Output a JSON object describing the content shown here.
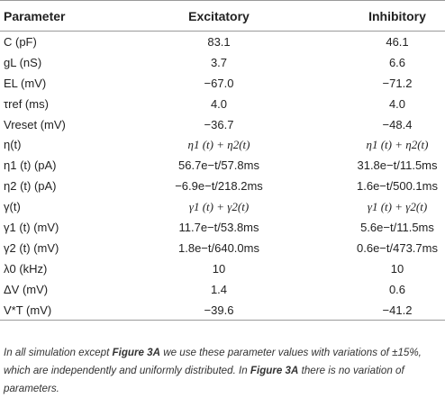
{
  "table": {
    "headers": {
      "parameter": "Parameter",
      "excitatory": "Excitatory",
      "inhibitory": "Inhibitory"
    },
    "rows": [
      {
        "parameter": "C (pF)",
        "excitatory": "83.1",
        "inhibitory": "46.1"
      },
      {
        "parameter": "gL (nS)",
        "excitatory": "3.7",
        "inhibitory": "6.6"
      },
      {
        "parameter": "EL (mV)",
        "excitatory": "−67.0",
        "inhibitory": "−71.2"
      },
      {
        "parameter": "τref (ms)",
        "excitatory": "4.0",
        "inhibitory": "4.0"
      },
      {
        "parameter": "Vreset (mV)",
        "excitatory": "−36.7",
        "inhibitory": "−48.4"
      },
      {
        "parameter": "η(t)",
        "excitatory": "η1 (t) + η2(t)",
        "inhibitory": "η1 (t) + η2(t)"
      },
      {
        "parameter": "η1 (t) (pA)",
        "excitatory": "56.7e−t/57.8ms",
        "inhibitory": "31.8e−t/11.5ms"
      },
      {
        "parameter": "η2 (t) (pA)",
        "excitatory": "−6.9e−t/218.2ms",
        "inhibitory": "1.6e−t/500.1ms"
      },
      {
        "parameter": "γ(t)",
        "excitatory": "γ1 (t) + γ2(t)",
        "inhibitory": "γ1 (t) + γ2(t)"
      },
      {
        "parameter": "γ1 (t) (mV)",
        "excitatory": "11.7e−t/53.8ms",
        "inhibitory": "5.6e−t/11.5ms"
      },
      {
        "parameter": "γ2 (t) (mV)",
        "excitatory": "1.8e−t/640.0ms",
        "inhibitory": "0.6e−t/473.7ms"
      },
      {
        "parameter": "λ0 (kHz)",
        "excitatory": "10",
        "inhibitory": "10"
      },
      {
        "parameter": "ΔV (mV)",
        "excitatory": "1.4",
        "inhibitory": "0.6"
      },
      {
        "parameter": "V*T (mV)",
        "excitatory": "−39.6",
        "inhibitory": "−41.2"
      }
    ]
  },
  "footnote": {
    "part1": "In all simulation except ",
    "ref1": "Figure 3A",
    "part2": " we use these parameter values with variations of ±15%, which are independently and uniformly distributed. In ",
    "ref2": "Figure 3A",
    "part3": " there is no variation of parameters."
  }
}
